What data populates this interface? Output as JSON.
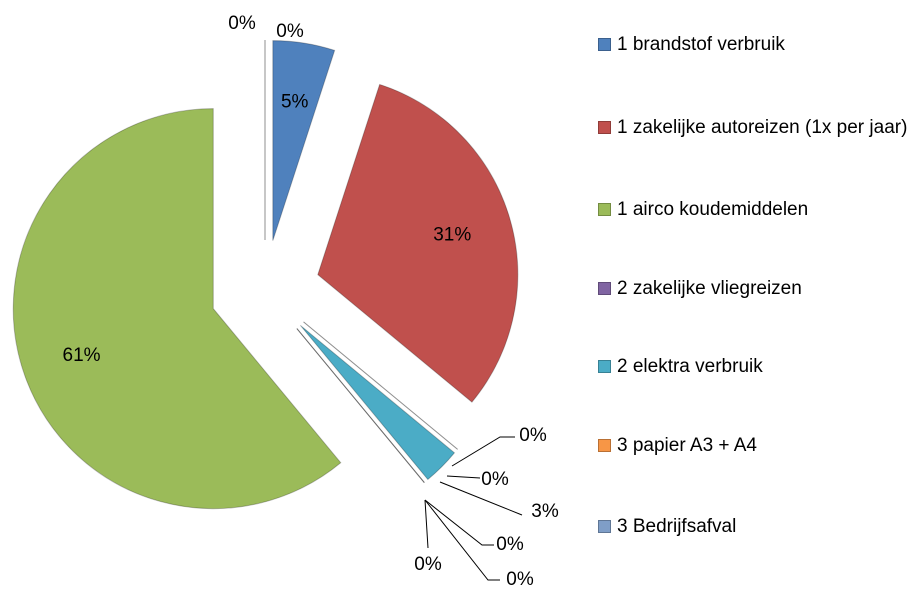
{
  "chart_data": {
    "type": "pie",
    "values": [
      5,
      31,
      0,
      0,
      3,
      0,
      0,
      0,
      61,
      0,
      0
    ],
    "value_labels": [
      "5%",
      "31%",
      "0%",
      "0%",
      "3%",
      "0%",
      "0%",
      "0%",
      "61%",
      "0%",
      "0%"
    ],
    "colors": [
      "#4f81bd",
      "#c0504d",
      "#8064a2",
      "#f79646",
      "#4bacc6",
      "#7f9ec7",
      "#4f81bd",
      "#c0504d",
      "#9bbb59",
      "#8064a2",
      "#4bacc6"
    ],
    "legend": [
      {
        "name": "1 brandstof verbruik",
        "color": "#4f81bd"
      },
      {
        "name": "1 zakelijke autoreizen (1x per jaar)",
        "color": "#c0504d"
      },
      {
        "name": "1 airco koudemiddelen",
        "color": "#9bbb59"
      },
      {
        "name": "2 zakelijke vliegreizen",
        "color": "#8064a2"
      },
      {
        "name": "2 elektra verbruik",
        "color": "#4bacc6"
      },
      {
        "name": "3 papier A3 + A4",
        "color": "#f79646"
      },
      {
        "name": "3 Bedrijfsafval",
        "color": "#7f9ec7"
      }
    ]
  }
}
